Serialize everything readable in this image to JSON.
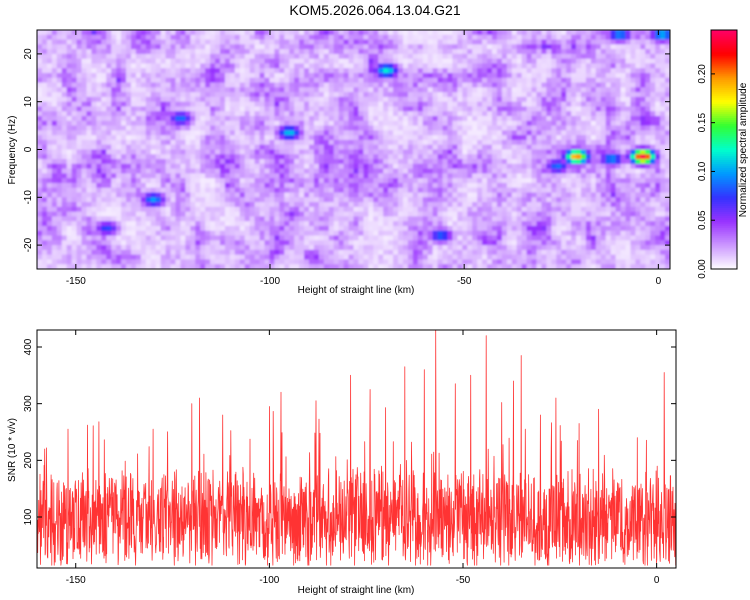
{
  "title": "KOM5.2026.064.13.04.G21",
  "chart_data": [
    {
      "type": "heatmap",
      "xlabel": "Height of straight line (km)",
      "ylabel": "Frequency (Hz)",
      "xlim": [
        -160,
        3
      ],
      "ylim": [
        -25,
        25
      ],
      "xticks": [
        -150,
        -100,
        -50,
        0
      ],
      "yticks": [
        -20,
        -10,
        0,
        10,
        20
      ],
      "colorbar": {
        "label": "Normalized spectral amplitude",
        "range": [
          0,
          0.245
        ],
        "ticks": [
          0.0,
          0.05,
          0.1,
          0.15,
          0.2
        ],
        "tick_labels": [
          "0.00",
          "0.05",
          "0.10",
          "0.15",
          "0.20"
        ],
        "colormap": [
          "#ffffff",
          "#cc99ff",
          "#9933ff",
          "#3333ff",
          "#0099ff",
          "#00ffcc",
          "#33ff33",
          "#ffff00",
          "#ff9900",
          "#ff0000",
          "#ff0066"
        ]
      },
      "background_level": 0.03,
      "hotspots": [
        {
          "x": -4,
          "y": -1.5,
          "value": 0.24
        },
        {
          "x": -21,
          "y": -1.5,
          "value": 0.2
        },
        {
          "x": -70,
          "y": 16.5,
          "value": 0.12
        },
        {
          "x": -95,
          "y": 3.5,
          "value": 0.11
        },
        {
          "x": -130,
          "y": -10.5,
          "value": 0.1
        },
        {
          "x": -123,
          "y": 6.5,
          "value": 0.09
        },
        {
          "x": 1,
          "y": 24,
          "value": 0.11
        },
        {
          "x": -10,
          "y": 24,
          "value": 0.1
        },
        {
          "x": -56,
          "y": -18,
          "value": 0.09
        },
        {
          "x": -142,
          "y": -16.5,
          "value": 0.08
        },
        {
          "x": -26,
          "y": -3.5,
          "value": 0.09
        },
        {
          "x": -12,
          "y": -2,
          "value": 0.1
        }
      ]
    },
    {
      "type": "line",
      "series_name": "SNR",
      "color": "#ff3333",
      "xlabel": "Height of straight line (km)",
      "ylabel": "SNR (10 * v/v)",
      "xlim": [
        -160,
        5
      ],
      "ylim": [
        10,
        430
      ],
      "xticks": [
        -150,
        -100,
        -50,
        0
      ],
      "yticks": [
        100,
        200,
        300,
        400
      ],
      "baseline_mean": 95,
      "peaks": [
        {
          "x": -57,
          "y": 430
        },
        {
          "x": -44,
          "y": 420
        },
        {
          "x": -35,
          "y": 385
        },
        {
          "x": -65,
          "y": 365
        },
        {
          "x": -60,
          "y": 360
        },
        {
          "x": 2,
          "y": 355
        },
        {
          "x": -48,
          "y": 350
        },
        {
          "x": -79,
          "y": 350
        },
        {
          "x": -37,
          "y": 340
        },
        {
          "x": -52,
          "y": 335
        },
        {
          "x": -74,
          "y": 325
        },
        {
          "x": -97,
          "y": 320
        },
        {
          "x": -118,
          "y": 310
        },
        {
          "x": -26,
          "y": 310
        },
        {
          "x": -88,
          "y": 305
        },
        {
          "x": -40,
          "y": 302
        },
        {
          "x": -120,
          "y": 300
        },
        {
          "x": -100,
          "y": 295
        },
        {
          "x": -70,
          "y": 293
        },
        {
          "x": -15,
          "y": 290
        },
        {
          "x": -30,
          "y": 280
        },
        {
          "x": -112,
          "y": 280
        },
        {
          "x": -144,
          "y": 268
        },
        {
          "x": -147,
          "y": 262
        },
        {
          "x": -152,
          "y": 255
        },
        {
          "x": -20,
          "y": 265
        },
        {
          "x": -130,
          "y": 255
        },
        {
          "x": -5,
          "y": 240
        },
        {
          "x": -158,
          "y": 220
        }
      ]
    }
  ]
}
